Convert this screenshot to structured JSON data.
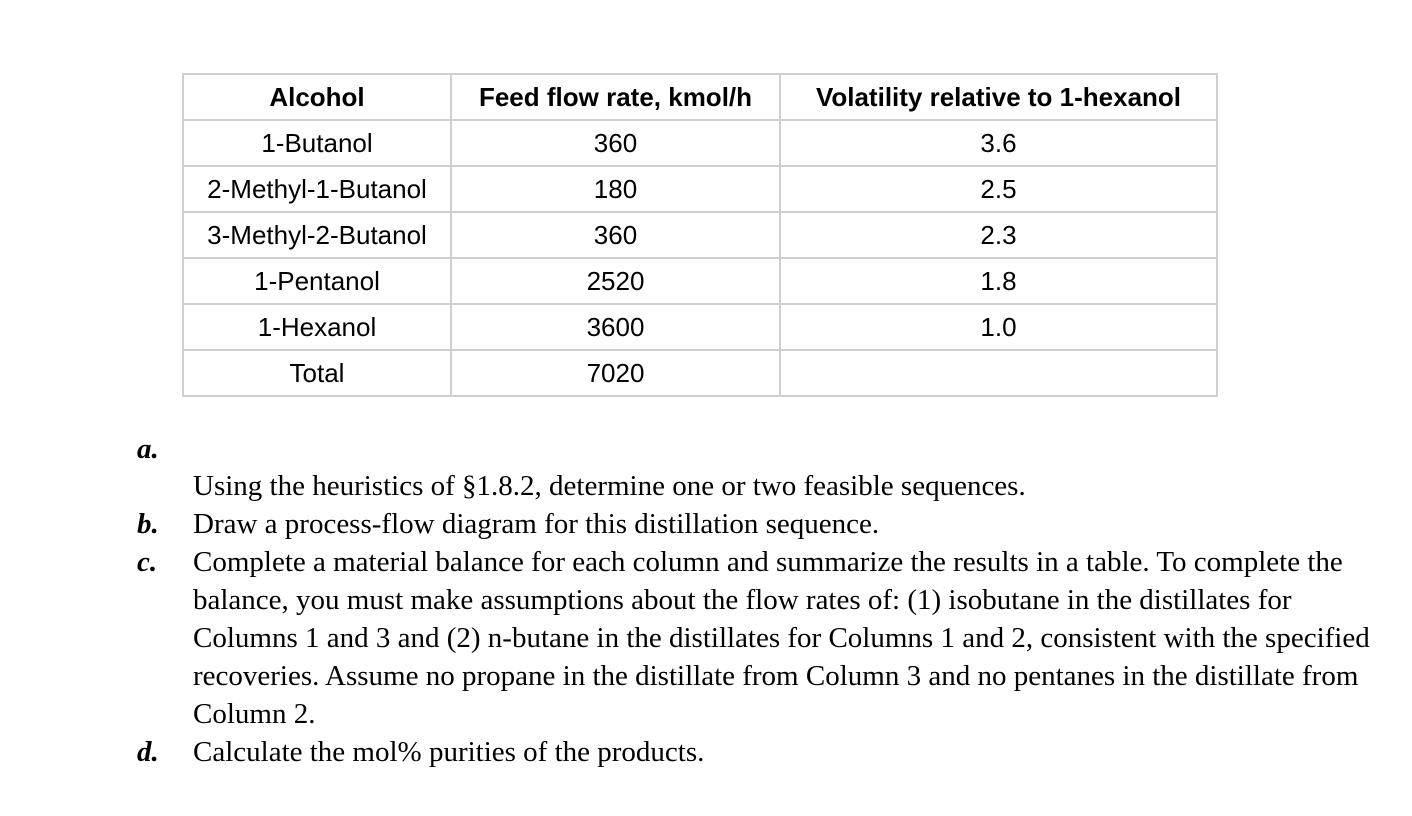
{
  "table": {
    "headers": [
      "Alcohol",
      "Feed flow rate, kmol/h",
      "Volatility relative to 1-hexanol"
    ],
    "rows": [
      [
        "1-Butanol",
        "360",
        "3.6"
      ],
      [
        "2-Methyl-1-Butanol",
        "180",
        "2.5"
      ],
      [
        "3-Methyl-2-Butanol",
        "360",
        "2.3"
      ],
      [
        "1-Pentanol",
        "2520",
        "1.8"
      ],
      [
        "1-Hexanol",
        "3600",
        "1.0"
      ],
      [
        "Total",
        "7020",
        ""
      ]
    ]
  },
  "questions": [
    {
      "letter": "a.",
      "text": "Using the heuristics of §1.8.2, determine one or two feasible sequences."
    },
    {
      "letter": "b.",
      "text": "Draw a process-flow diagram for this distillation sequence."
    },
    {
      "letter": "c.",
      "text": "Complete a material balance for each column and summarize the results in a table. To complete the balance, you must make assumptions about the flow rates of: (1) isobutane in the distillates for Columns 1 and 3 and (2) n-butane in the distillates for Columns 1 and 2, consistent with the specified recoveries. Assume no propane in the distillate from Column 3 and no pentanes in the distillate from Column 2."
    },
    {
      "letter": "d.",
      "text": "Calculate the mol% purities of the products."
    }
  ]
}
